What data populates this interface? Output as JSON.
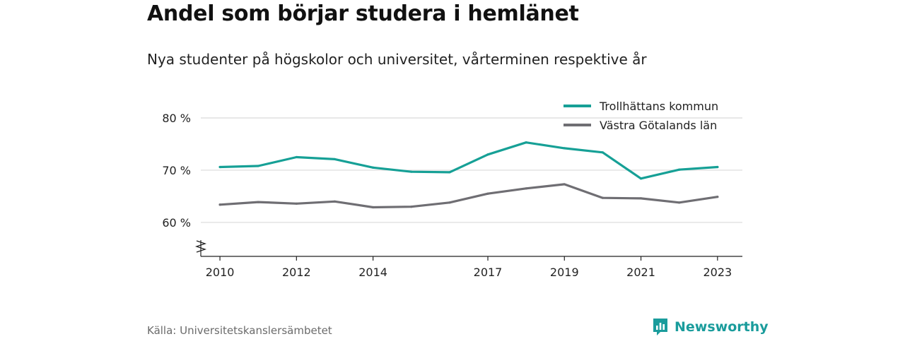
{
  "title": "Andel som börjar studera i hemlänet",
  "subtitle": "Nya studenter på högskolor och universitet, vårterminen respektive år",
  "source": "Källa: Universitetskanslersämbetet",
  "brand": {
    "name": "Newsworthy",
    "icon": "newsworthy-logo-icon",
    "color": "#1a9c9c"
  },
  "chart_data": {
    "type": "line",
    "x": [
      2010,
      2011,
      2012,
      2013,
      2014,
      2015,
      2016,
      2017,
      2018,
      2019,
      2020,
      2021,
      2022,
      2023
    ],
    "x_ticks": [
      2010,
      2012,
      2014,
      2017,
      2019,
      2021,
      2023
    ],
    "y_ticks": [
      60,
      70,
      80
    ],
    "y_tick_labels": [
      "60 %",
      "70 %",
      "80 %"
    ],
    "ylim": [
      53.5,
      85
    ],
    "xlim": [
      2009.5,
      2023.65
    ],
    "axis_break": true,
    "grid": true,
    "legend_position": "top-right",
    "series": [
      {
        "name": "Trollhättans kommun",
        "color": "#16a096",
        "values": [
          70.6,
          70.8,
          72.5,
          72.1,
          70.5,
          69.7,
          69.6,
          73.0,
          75.3,
          74.2,
          73.4,
          68.4,
          70.1,
          70.6
        ]
      },
      {
        "name": "Västra Götalands län",
        "color": "#6f6e73",
        "values": [
          63.4,
          63.9,
          63.6,
          64.0,
          62.9,
          63.0,
          63.8,
          65.5,
          66.5,
          67.3,
          64.7,
          64.6,
          63.8,
          64.9
        ]
      }
    ]
  }
}
